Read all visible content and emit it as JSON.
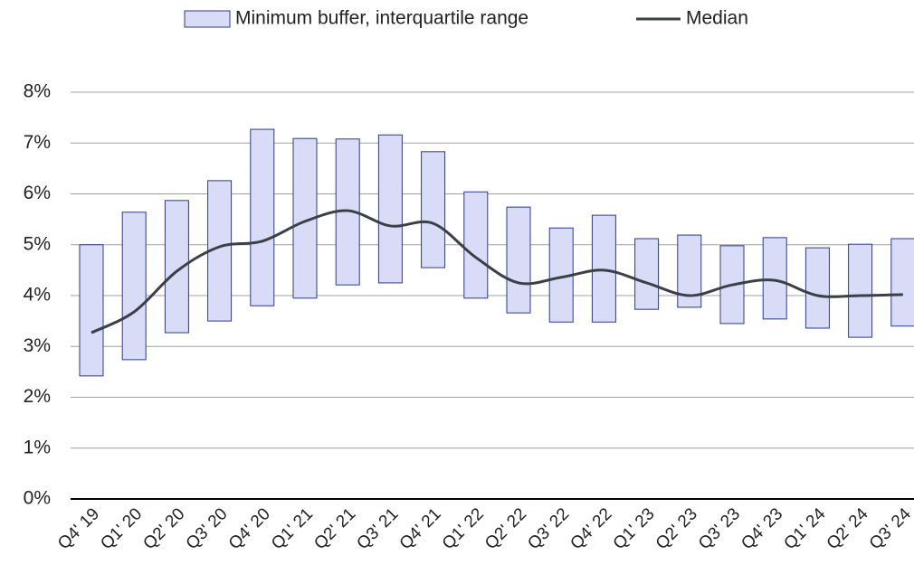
{
  "chart_data": {
    "type": "range-bar-line",
    "categories": [
      "Q4' 19",
      "Q1' 20",
      "Q2' 20",
      "Q3' 20",
      "Q4' 20",
      "Q1' 21",
      "Q2' 21",
      "Q3' 21",
      "Q4' 21",
      "Q1' 22",
      "Q2' 22",
      "Q3' 22",
      "Q4' 22",
      "Q1' 23",
      "Q2' 23",
      "Q3' 23",
      "Q4' 23",
      "Q1' 24",
      "Q2' 24",
      "Q3' 24"
    ],
    "series": [
      {
        "name": "Minimum buffer, interquartile range",
        "color": "#d9dcf7",
        "edge_color": "#2b3a8c",
        "low": [
          2.42,
          2.74,
          3.27,
          3.5,
          3.8,
          3.95,
          4.21,
          4.25,
          4.55,
          3.95,
          3.66,
          3.48,
          3.48,
          3.73,
          3.77,
          3.45,
          3.54,
          3.36,
          3.18,
          3.4
        ],
        "high": [
          5.0,
          5.64,
          5.87,
          6.26,
          7.27,
          7.09,
          7.08,
          7.16,
          6.83,
          6.04,
          5.74,
          5.33,
          5.58,
          5.12,
          5.19,
          4.98,
          5.14,
          4.94,
          5.01,
          5.12
        ]
      },
      {
        "name": "Median",
        "color": "#3a4046",
        "values": [
          3.27,
          3.68,
          4.48,
          4.96,
          5.07,
          5.46,
          5.67,
          5.37,
          5.42,
          4.75,
          4.25,
          4.36,
          4.5,
          4.25,
          4.0,
          4.21,
          4.3,
          4.0,
          4.0,
          4.02
        ]
      }
    ],
    "ylim": [
      0,
      8
    ],
    "yticks": [
      {
        "value": 0,
        "label": "0%"
      },
      {
        "value": 1,
        "label": "1%"
      },
      {
        "value": 2,
        "label": "2%"
      },
      {
        "value": 3,
        "label": "3%"
      },
      {
        "value": 4,
        "label": "4%"
      },
      {
        "value": 5,
        "label": "5%"
      },
      {
        "value": 6,
        "label": "6%"
      },
      {
        "value": 7,
        "label": "7%"
      },
      {
        "value": 8,
        "label": "8%"
      }
    ],
    "grid": true,
    "legend": "top"
  }
}
